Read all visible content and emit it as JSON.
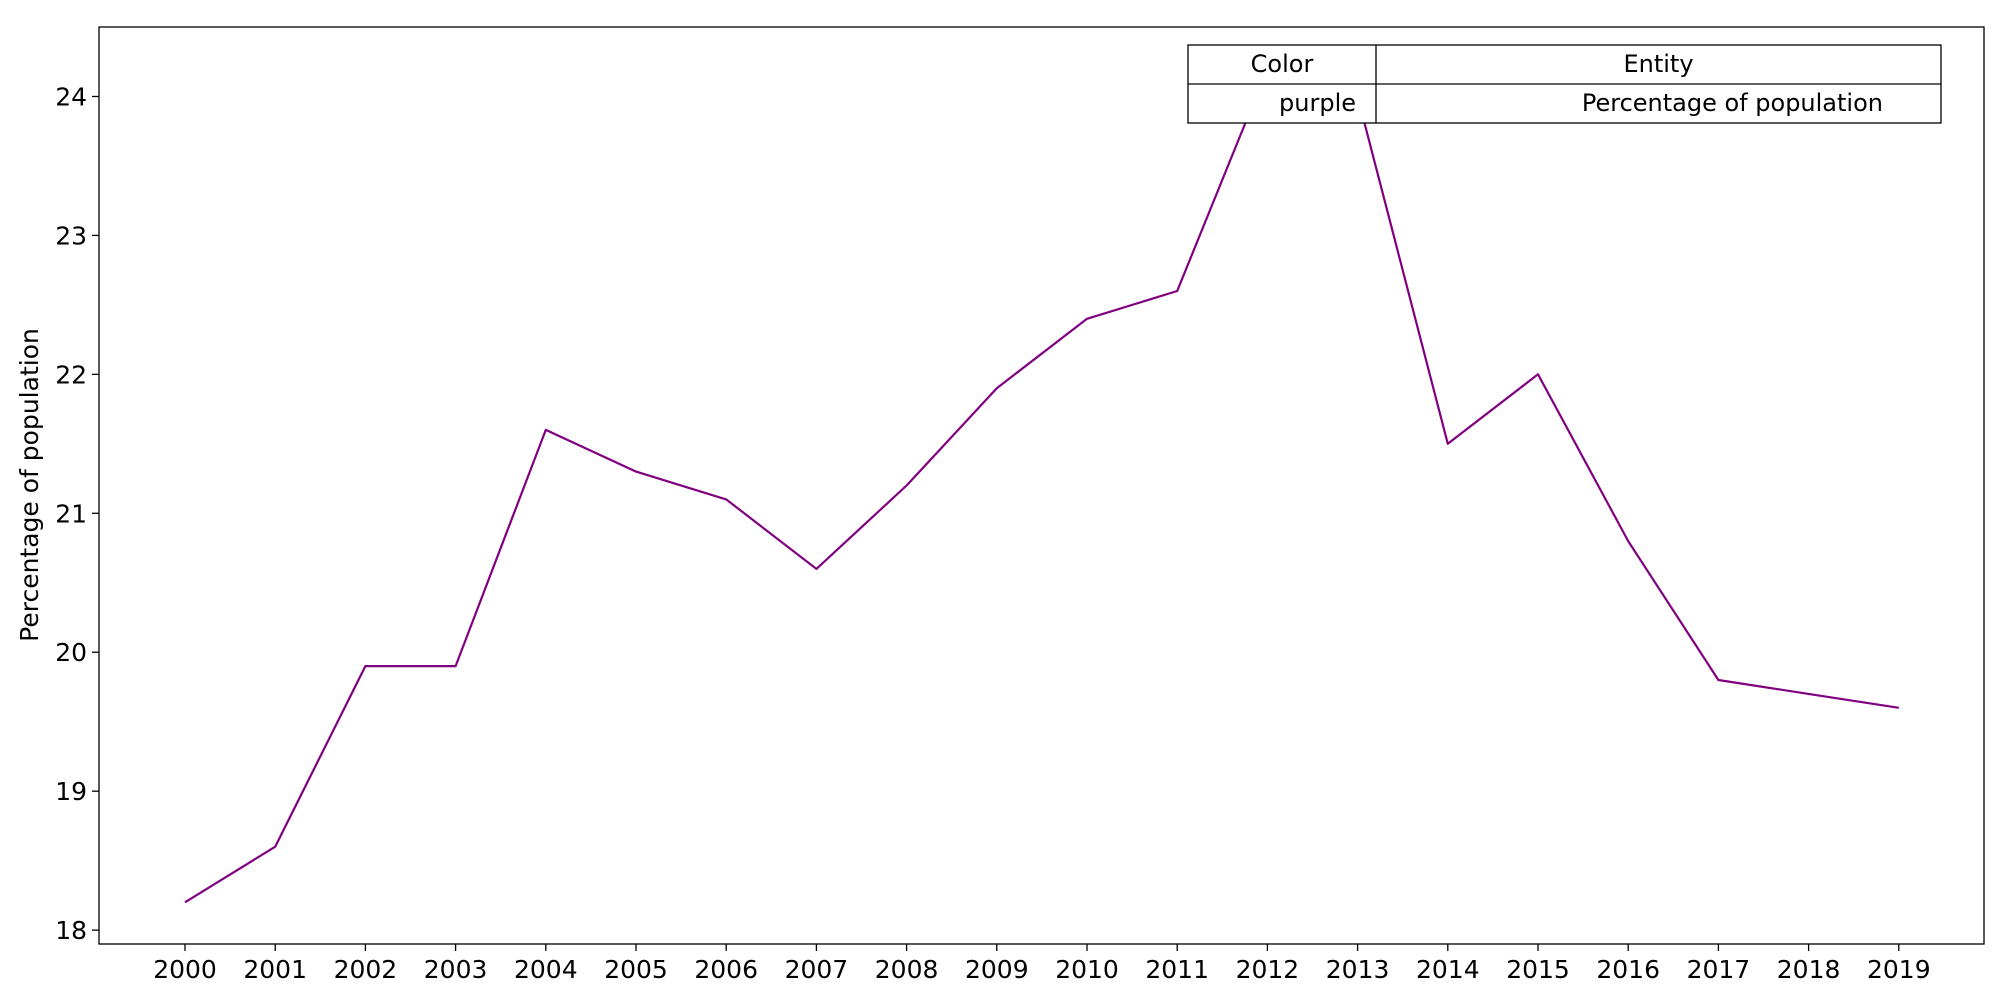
{
  "chart_data": {
    "type": "line",
    "title": "",
    "xlabel": "",
    "ylabel": "Percentage of population",
    "x": [
      "2000",
      "2001",
      "2002",
      "2003",
      "2004",
      "2005",
      "2006",
      "2007",
      "2008",
      "2009",
      "2010",
      "2011",
      "2012",
      "2013",
      "2014",
      "2015",
      "2016",
      "2017",
      "2018",
      "2019"
    ],
    "series": [
      {
        "name": "Percentage of population",
        "color": "#800080",
        "values": [
          18.2,
          18.6,
          19.9,
          19.9,
          21.6,
          21.3,
          21.1,
          20.6,
          21.2,
          21.9,
          22.4,
          22.6,
          24.2,
          24.0,
          21.5,
          22.0,
          20.8,
          19.8,
          19.7,
          19.6
        ]
      }
    ],
    "ylim": [
      17.9,
      24.5
    ],
    "yticks": [
      "18",
      "19",
      "20",
      "21",
      "22",
      "23",
      "24"
    ],
    "grid": false,
    "legend_table": {
      "placement": "top-right",
      "headers": [
        "Color",
        "Entity"
      ],
      "rows": [
        [
          "purple",
          "Percentage of population"
        ]
      ]
    }
  }
}
